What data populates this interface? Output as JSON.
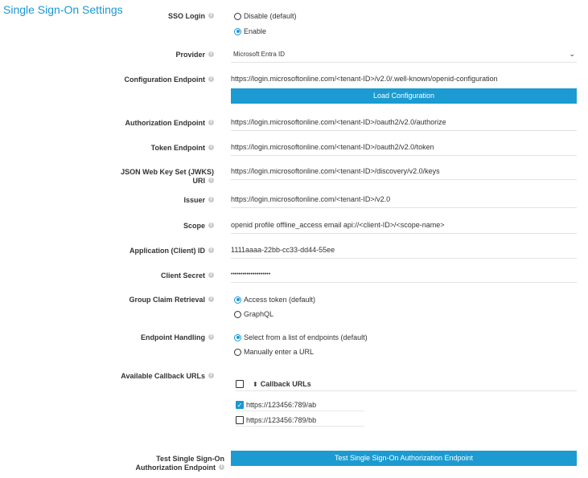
{
  "title": "Single Sign-On Settings",
  "sso_login": {
    "label": "SSO Login",
    "options": [
      "Disable (default)",
      "Enable"
    ],
    "selected": 1
  },
  "provider": {
    "label": "Provider",
    "value": "Microsoft Entra ID"
  },
  "config_endpoint": {
    "label": "Configuration Endpoint",
    "value": "https://login.microsoftonline.com/<tenant-ID>/v2.0/.well-known/openid-configuration",
    "button": "Load Configuration"
  },
  "auth_endpoint": {
    "label": "Authorization Endpoint",
    "value": "https://login.microsoftonline.com/<tenant-ID>/oauth2/v2.0/authorize"
  },
  "token_endpoint": {
    "label": "Token Endpoint",
    "value": "https://login.microsoftonline.com/<tenant-ID>/oauth2/v2.0/token"
  },
  "jwks": {
    "label_line1": "JSON Web Key Set (JWKS)",
    "label_line2": "URI",
    "value": "https://login.microsoftonline.com/<tenant-ID>/discovery/v2.0/keys"
  },
  "issuer": {
    "label": "Issuer",
    "value": "https://login.microsoftonline.com/<tenant-ID>/v2.0"
  },
  "scope": {
    "label": "Scope",
    "value": "openid profile offline_access email api://<client-ID>/<scope-name>"
  },
  "client_id": {
    "label": "Application (Client) ID",
    "value": "1111aaaa-22bb-cc33-dd44-55ee"
  },
  "client_secret": {
    "label": "Client Secret",
    "value": "••••••••••••••••••••"
  },
  "group_claim": {
    "label": "Group Claim Retrieval",
    "options": [
      "Access token (default)",
      "GraphQL"
    ],
    "selected": 0
  },
  "endpoint_handling": {
    "label": "Endpoint Handling",
    "options": [
      "Select from a list of endpoints (default)",
      "Manually enter a URL"
    ],
    "selected": 0
  },
  "callbacks": {
    "label": "Available Callback URLs",
    "header": "Callback URLs",
    "items": [
      {
        "url": "https://123456:789/ab",
        "checked": true
      },
      {
        "url": "https://123456:789/bb",
        "checked": false
      }
    ]
  },
  "test": {
    "label_line1": "Test Single Sign-On",
    "label_line2": "Authorization Endpoint",
    "button": "Test Single Sign-On Authorization Endpoint"
  },
  "colors": {
    "accent": "#1b9bd1"
  }
}
